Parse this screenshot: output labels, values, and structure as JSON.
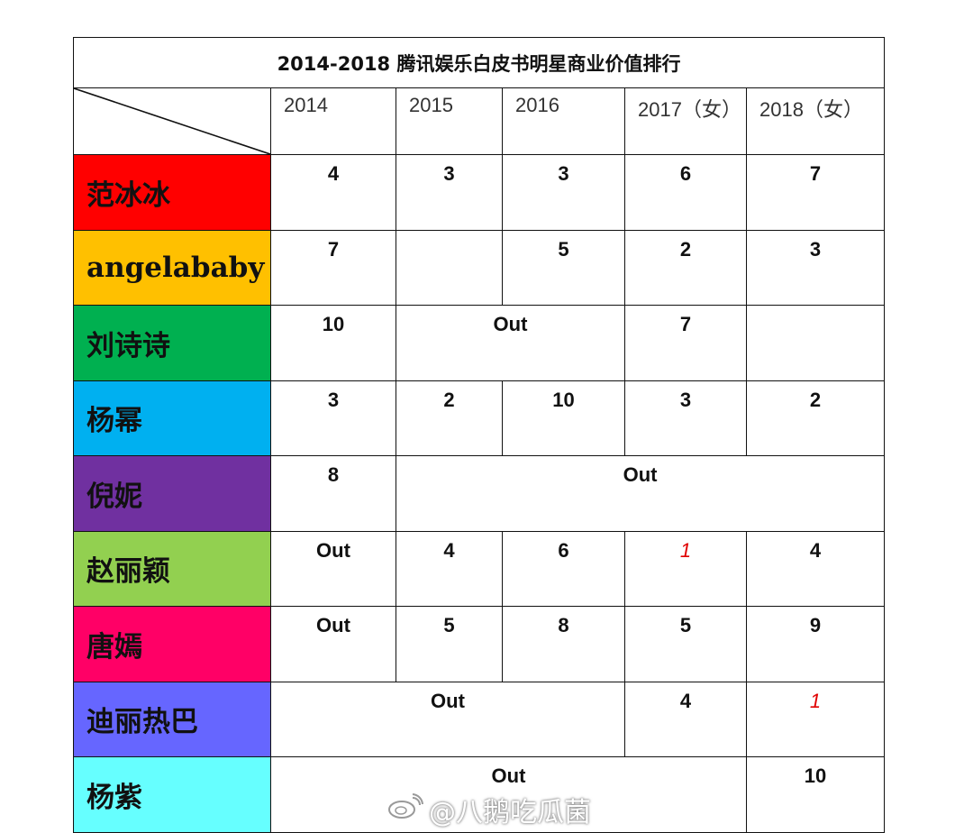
{
  "title": "2014-2018 腾讯娱乐白皮书明星商业价值排行",
  "years": [
    "2014",
    "2015",
    "2016",
    "2017（女）",
    "2018（女）"
  ],
  "rows": [
    {
      "name": "范冰冰",
      "color": "#ff0000",
      "cells": [
        {
          "v": "4"
        },
        {
          "v": "3"
        },
        {
          "v": "3"
        },
        {
          "v": "6"
        },
        {
          "v": "7"
        }
      ]
    },
    {
      "name": "angelababy",
      "color": "#ffc000",
      "cells": [
        {
          "v": "7"
        },
        {
          "v": ""
        },
        {
          "v": "5"
        },
        {
          "v": "2"
        },
        {
          "v": "3"
        }
      ]
    },
    {
      "name": "刘诗诗",
      "color": "#00b050",
      "cells": [
        {
          "v": "10"
        },
        {
          "v": "Out",
          "span": 2
        },
        {
          "v": "7"
        },
        {
          "v": ""
        }
      ]
    },
    {
      "name": "杨幂",
      "color": "#00b0f0",
      "cells": [
        {
          "v": "3"
        },
        {
          "v": "2"
        },
        {
          "v": "10"
        },
        {
          "v": "3"
        },
        {
          "v": "2"
        }
      ]
    },
    {
      "name": "倪妮",
      "color": "#7030a0",
      "cells": [
        {
          "v": "8"
        },
        {
          "v": "Out",
          "span": 4
        }
      ]
    },
    {
      "name": "赵丽颖",
      "color": "#92d050",
      "cells": [
        {
          "v": "Out"
        },
        {
          "v": "4"
        },
        {
          "v": "6"
        },
        {
          "v": "1",
          "highlight": true
        },
        {
          "v": "4"
        }
      ]
    },
    {
      "name": "唐嫣",
      "color": "#ff0066",
      "cells": [
        {
          "v": "Out"
        },
        {
          "v": "5"
        },
        {
          "v": "8"
        },
        {
          "v": "5"
        },
        {
          "v": "9"
        }
      ]
    },
    {
      "name": "迪丽热巴",
      "color": "#6666ff",
      "cells": [
        {
          "v": "Out",
          "span": 3
        },
        {
          "v": "4"
        },
        {
          "v": "1",
          "highlight": true
        }
      ]
    },
    {
      "name": "杨紫",
      "color": "#66ffff",
      "cells": [
        {
          "v": "Out",
          "span": 4
        },
        {
          "v": "10"
        }
      ]
    }
  ],
  "highlight_color": "#e00000",
  "watermark": {
    "icon": "weibo-icon",
    "text": "@八鹅吃瓜菌"
  }
}
